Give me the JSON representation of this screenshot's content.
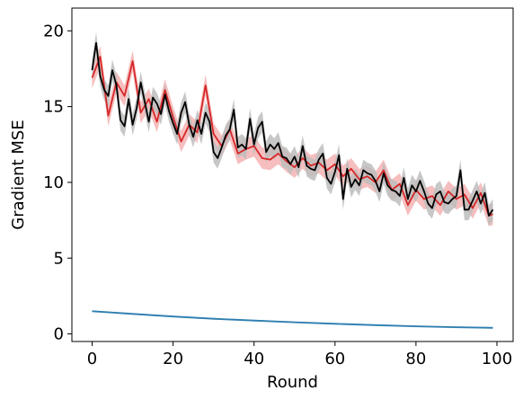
{
  "chart_data": {
    "type": "line",
    "title": "",
    "xlabel": "Round",
    "ylabel": "Gradient MSE",
    "xlim": [
      -5,
      104
    ],
    "ylim": [
      -0.5,
      21.5
    ],
    "xticks": [
      0,
      20,
      40,
      60,
      80,
      100
    ],
    "yticks": [
      0,
      5,
      10,
      15,
      20
    ],
    "grid": false,
    "legend": "none",
    "series": [
      {
        "color": "#d62728",
        "band_color": "#f4b3b3",
        "band_halfwidth": 0.7,
        "points": [
          [
            0,
            16.9
          ],
          [
            2,
            18.3
          ],
          [
            4,
            14.4
          ],
          [
            6,
            16.6
          ],
          [
            8,
            15.7
          ],
          [
            10,
            18.0
          ],
          [
            12,
            14.6
          ],
          [
            14,
            15.5
          ],
          [
            16,
            14.0
          ],
          [
            18,
            16.1
          ],
          [
            20,
            14.3
          ],
          [
            22,
            12.7
          ],
          [
            24,
            13.8
          ],
          [
            26,
            13.3
          ],
          [
            28,
            16.4
          ],
          [
            30,
            13.2
          ],
          [
            32,
            12.4
          ],
          [
            34,
            13.5
          ],
          [
            36,
            11.9
          ],
          [
            38,
            12.2
          ],
          [
            40,
            12.4
          ],
          [
            42,
            11.6
          ],
          [
            44,
            11.5
          ],
          [
            46,
            11.9
          ],
          [
            48,
            11.4
          ],
          [
            50,
            11.0
          ],
          [
            52,
            11.6
          ],
          [
            54,
            11.1
          ],
          [
            56,
            11.3
          ],
          [
            58,
            10.8
          ],
          [
            60,
            11.2
          ],
          [
            62,
            10.4
          ],
          [
            64,
            10.9
          ],
          [
            66,
            10.2
          ],
          [
            68,
            10.4
          ],
          [
            70,
            10.0
          ],
          [
            72,
            10.8
          ],
          [
            74,
            9.5
          ],
          [
            76,
            9.9
          ],
          [
            78,
            8.5
          ],
          [
            80,
            9.5
          ],
          [
            82,
            8.9
          ],
          [
            84,
            9.1
          ],
          [
            86,
            8.5
          ],
          [
            88,
            9.4
          ],
          [
            90,
            8.9
          ],
          [
            92,
            9.2
          ],
          [
            94,
            8.3
          ],
          [
            96,
            9.3
          ],
          [
            98,
            7.8
          ],
          [
            99,
            7.9
          ]
        ]
      },
      {
        "color": "#000000",
        "band_color": "#bdbdbd",
        "band_halfwidth": 0.7,
        "points": [
          [
            0,
            17.4
          ],
          [
            1,
            19.2
          ],
          [
            2,
            17.0
          ],
          [
            3,
            16.1
          ],
          [
            4,
            15.7
          ],
          [
            5,
            17.4
          ],
          [
            6,
            16.4
          ],
          [
            7,
            14.1
          ],
          [
            8,
            13.7
          ],
          [
            9,
            15.5
          ],
          [
            10,
            13.8
          ],
          [
            11,
            14.9
          ],
          [
            12,
            16.6
          ],
          [
            13,
            15.3
          ],
          [
            14,
            14.0
          ],
          [
            15,
            15.6
          ],
          [
            16,
            15.2
          ],
          [
            17,
            14.5
          ],
          [
            18,
            15.8
          ],
          [
            19,
            14.7
          ],
          [
            20,
            13.9
          ],
          [
            21,
            13.2
          ],
          [
            22,
            14.6
          ],
          [
            23,
            15.3
          ],
          [
            24,
            13.8
          ],
          [
            25,
            13.0
          ],
          [
            26,
            14.1
          ],
          [
            27,
            13.2
          ],
          [
            28,
            14.6
          ],
          [
            29,
            14.0
          ],
          [
            30,
            12.0
          ],
          [
            31,
            11.6
          ],
          [
            32,
            12.3
          ],
          [
            33,
            13.1
          ],
          [
            34,
            13.5
          ],
          [
            35,
            14.8
          ],
          [
            36,
            12.3
          ],
          [
            37,
            12.5
          ],
          [
            38,
            12.2
          ],
          [
            39,
            14.2
          ],
          [
            40,
            12.5
          ],
          [
            41,
            13.6
          ],
          [
            42,
            14.0
          ],
          [
            43,
            12.0
          ],
          [
            44,
            12.5
          ],
          [
            45,
            12.2
          ],
          [
            46,
            12.6
          ],
          [
            47,
            11.7
          ],
          [
            48,
            11.6
          ],
          [
            49,
            11.2
          ],
          [
            50,
            11.7
          ],
          [
            51,
            11.0
          ],
          [
            52,
            12.4
          ],
          [
            53,
            11.1
          ],
          [
            54,
            10.9
          ],
          [
            55,
            10.8
          ],
          [
            56,
            11.5
          ],
          [
            57,
            11.9
          ],
          [
            58,
            10.3
          ],
          [
            59,
            9.9
          ],
          [
            60,
            10.7
          ],
          [
            61,
            11.8
          ],
          [
            62,
            8.9
          ],
          [
            63,
            10.9
          ],
          [
            64,
            9.7
          ],
          [
            65,
            10.2
          ],
          [
            66,
            9.8
          ],
          [
            67,
            10.8
          ],
          [
            68,
            10.6
          ],
          [
            69,
            10.5
          ],
          [
            70,
            10.1
          ],
          [
            71,
            9.4
          ],
          [
            72,
            10.6
          ],
          [
            73,
            9.8
          ],
          [
            74,
            9.5
          ],
          [
            75,
            9.4
          ],
          [
            76,
            9.1
          ],
          [
            77,
            10.3
          ],
          [
            78,
            8.9
          ],
          [
            79,
            9.8
          ],
          [
            80,
            9.4
          ],
          [
            81,
            10.1
          ],
          [
            82,
            9.4
          ],
          [
            83,
            8.6
          ],
          [
            84,
            8.3
          ],
          [
            85,
            9.2
          ],
          [
            86,
            9.4
          ],
          [
            87,
            8.7
          ],
          [
            88,
            8.6
          ],
          [
            89,
            8.9
          ],
          [
            90,
            9.1
          ],
          [
            91,
            10.8
          ],
          [
            92,
            8.2
          ],
          [
            93,
            8.2
          ],
          [
            94,
            8.8
          ],
          [
            95,
            9.4
          ],
          [
            96,
            8.6
          ],
          [
            97,
            9.3
          ],
          [
            98,
            7.8
          ],
          [
            99,
            8.2
          ]
        ]
      },
      {
        "color": "#2e7eb0",
        "band_color": "#b9d7ea",
        "band_halfwidth": 0.06,
        "points": [
          [
            0,
            1.5
          ],
          [
            10,
            1.32
          ],
          [
            20,
            1.15
          ],
          [
            30,
            1.0
          ],
          [
            40,
            0.88
          ],
          [
            50,
            0.77
          ],
          [
            60,
            0.67
          ],
          [
            70,
            0.58
          ],
          [
            80,
            0.5
          ],
          [
            90,
            0.44
          ],
          [
            99,
            0.4
          ]
        ]
      }
    ]
  }
}
